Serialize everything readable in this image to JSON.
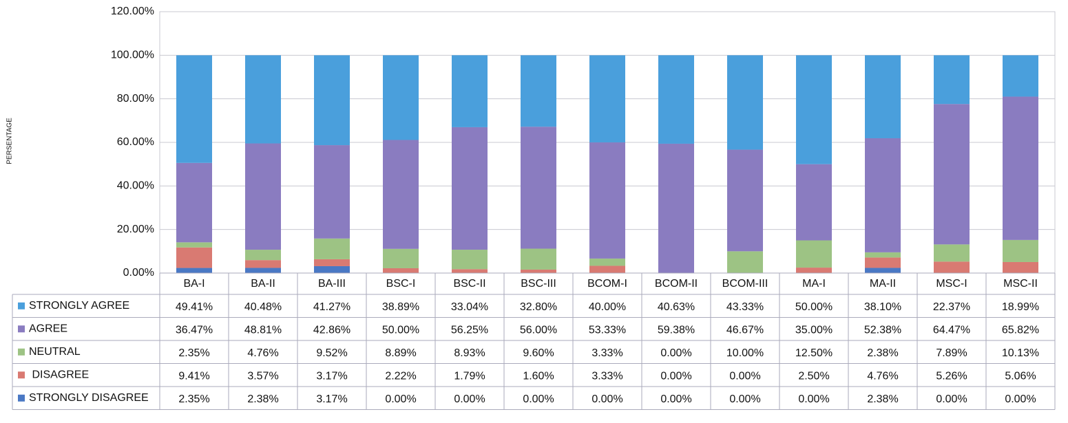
{
  "chart_data": {
    "type": "stacked_bar",
    "y_label": "PERSENTAGE",
    "categories": [
      "BA-I",
      "BA-II",
      "BA-III",
      "BSC-I",
      "BSC-II",
      "BSC-III",
      "BCOM-I",
      "BCOM-II",
      "BCOM-III",
      "MA-I",
      "MA-II",
      "MSC-I",
      "MSC-II"
    ],
    "series": [
      {
        "name": "STRONGLY AGREE",
        "color": "#4a9fdc",
        "values": [
          49.41,
          40.48,
          41.27,
          38.89,
          33.04,
          32.8,
          40.0,
          40.63,
          43.33,
          50.0,
          38.1,
          22.37,
          18.99
        ],
        "value_labels": [
          "49.41%",
          "40.48%",
          "41.27%",
          "38.89%",
          "33.04%",
          "32.80%",
          "40.00%",
          "40.63%",
          "43.33%",
          "50.00%",
          "38.10%",
          "22.37%",
          "18.99%"
        ]
      },
      {
        "name": "AGREE",
        "color": "#8a7cc0",
        "values": [
          36.47,
          48.81,
          42.86,
          50.0,
          56.25,
          56.0,
          53.33,
          59.38,
          46.67,
          35.0,
          52.38,
          64.47,
          65.82
        ],
        "value_labels": [
          "36.47%",
          "48.81%",
          "42.86%",
          "50.00%",
          "56.25%",
          "56.00%",
          "53.33%",
          "59.38%",
          "46.67%",
          "35.00%",
          "52.38%",
          "64.47%",
          "65.82%"
        ]
      },
      {
        "name": "NEUTRAL",
        "color": "#9dc384",
        "values": [
          2.35,
          4.76,
          9.52,
          8.89,
          8.93,
          9.6,
          3.33,
          0.0,
          10.0,
          12.5,
          2.38,
          7.89,
          10.13
        ],
        "value_labels": [
          "2.35%",
          "4.76%",
          "9.52%",
          "8.89%",
          "8.93%",
          "9.60%",
          "3.33%",
          "0.00%",
          "10.00%",
          "12.50%",
          "2.38%",
          "7.89%",
          "10.13%"
        ]
      },
      {
        "name": " DISAGREE",
        "color": "#d97a72",
        "values": [
          9.41,
          3.57,
          3.17,
          2.22,
          1.79,
          1.6,
          3.33,
          0.0,
          0.0,
          2.5,
          4.76,
          5.26,
          5.06
        ],
        "value_labels": [
          "9.41%",
          "3.57%",
          "3.17%",
          "2.22%",
          "1.79%",
          "1.60%",
          "3.33%",
          "0.00%",
          "0.00%",
          "2.50%",
          "4.76%",
          "5.26%",
          "5.06%"
        ]
      },
      {
        "name": "STRONGLY DISAGREE",
        "color": "#4a78c4",
        "values": [
          2.35,
          2.38,
          3.17,
          0.0,
          0.0,
          0.0,
          0.0,
          0.0,
          0.0,
          0.0,
          2.38,
          0.0,
          0.0
        ],
        "value_labels": [
          "2.35%",
          "2.38%",
          "3.17%",
          "0.00%",
          "0.00%",
          "0.00%",
          "0.00%",
          "0.00%",
          "0.00%",
          "0.00%",
          "2.38%",
          "0.00%",
          "0.00%"
        ]
      }
    ],
    "ylim": [
      0,
      120
    ],
    "yticks": [
      {
        "value": 0,
        "label": "0.00%"
      },
      {
        "value": 20,
        "label": "20.00%"
      },
      {
        "value": 40,
        "label": "40.00%"
      },
      {
        "value": 60,
        "label": "60.00%"
      },
      {
        "value": 80,
        "label": "80.00%"
      },
      {
        "value": 100,
        "label": "100.00%"
      },
      {
        "value": 120,
        "label": "120.00%"
      }
    ],
    "grid": true
  }
}
